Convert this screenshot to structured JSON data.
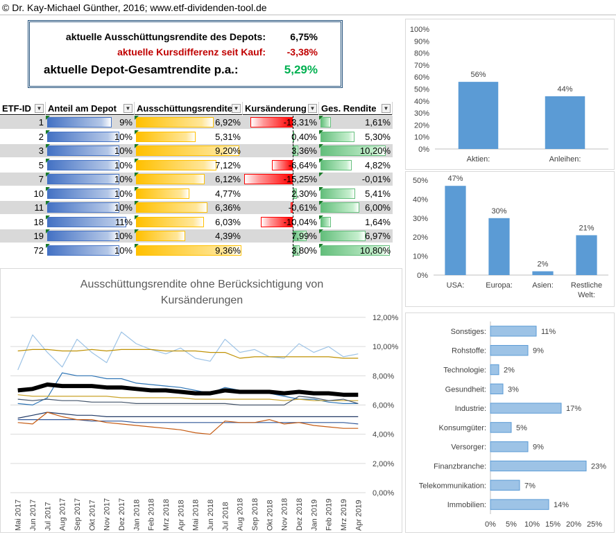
{
  "header": {
    "copyright": "© Dr. Kay-Michael Günther, 2016; www.etf-dividenden-tool.de"
  },
  "summary": {
    "row1_label": "aktuelle Ausschüttungsrendite des Depots:",
    "row1_value": "6,75%",
    "row2_label": "aktuelle Kursdifferenz seit Kauf:",
    "row2_value": "-3,38%",
    "row3_label": "aktuelle Depot-Gesamtrendite p.a.:",
    "row3_value": "5,29%",
    "colors": {
      "negative": "#c00000",
      "positive": "#00b050"
    }
  },
  "table": {
    "columns": [
      "ETF-ID",
      "Anteil am Depot",
      "Ausschüttungsrendite",
      "Kursänderung",
      "Ges. Rendite"
    ],
    "rows": [
      {
        "id": "1",
        "anteil": "9%",
        "anteil_v": 9,
        "aus": "6,92%",
        "aus_v": 6.92,
        "kurs": "-13,31%",
        "kurs_v": -13.31,
        "ges": "1,61%",
        "ges_v": 1.61
      },
      {
        "id": "2",
        "anteil": "10%",
        "anteil_v": 10,
        "aus": "5,31%",
        "aus_v": 5.31,
        "kurs": "0,40%",
        "kurs_v": 0.4,
        "ges": "5,30%",
        "ges_v": 5.3
      },
      {
        "id": "3",
        "anteil": "10%",
        "anteil_v": 10,
        "aus": "9,20%",
        "aus_v": 9.2,
        "kurs": "3,36%",
        "kurs_v": 3.36,
        "ges": "10,20%",
        "ges_v": 10.2
      },
      {
        "id": "5",
        "anteil": "10%",
        "anteil_v": 10,
        "aus": "7,12%",
        "aus_v": 7.12,
        "kurs": "-6,64%",
        "kurs_v": -6.64,
        "ges": "4,82%",
        "ges_v": 4.82
      },
      {
        "id": "7",
        "anteil": "10%",
        "anteil_v": 10,
        "aus": "6,12%",
        "aus_v": 6.12,
        "kurs": "-15,25%",
        "kurs_v": -15.25,
        "ges": "-0,01%",
        "ges_v": -0.01
      },
      {
        "id": "10",
        "anteil": "10%",
        "anteil_v": 10,
        "aus": "4,77%",
        "aus_v": 4.77,
        "kurs": "2,30%",
        "kurs_v": 2.3,
        "ges": "5,41%",
        "ges_v": 5.41
      },
      {
        "id": "11",
        "anteil": "10%",
        "anteil_v": 10,
        "aus": "6,36%",
        "aus_v": 6.36,
        "kurs": "-0,61%",
        "kurs_v": -0.61,
        "ges": "6,00%",
        "ges_v": 6.0
      },
      {
        "id": "18",
        "anteil": "11%",
        "anteil_v": 11,
        "aus": "6,03%",
        "aus_v": 6.03,
        "kurs": "-10,04%",
        "kurs_v": -10.04,
        "ges": "1,64%",
        "ges_v": 1.64
      },
      {
        "id": "19",
        "anteil": "10%",
        "anteil_v": 10,
        "aus": "4,39%",
        "aus_v": 4.39,
        "kurs": "7,99%",
        "kurs_v": 7.99,
        "ges": "6,97%",
        "ges_v": 6.97
      },
      {
        "id": "72",
        "anteil": "10%",
        "anteil_v": 10,
        "aus": "9,36%",
        "aus_v": 9.36,
        "kurs": "3,80%",
        "kurs_v": 3.8,
        "ges": "10,80%",
        "ges_v": 10.8
      }
    ]
  },
  "chart_data": [
    {
      "type": "bar",
      "categories": [
        "Aktien:",
        "Anleihen:"
      ],
      "values": [
        56,
        44
      ],
      "data_labels": [
        "56%",
        "44%"
      ],
      "yticks": [
        "0%",
        "10%",
        "20%",
        "30%",
        "40%",
        "50%",
        "60%",
        "70%",
        "80%",
        "90%",
        "100%"
      ],
      "ylim": [
        0,
        100
      ],
      "color": "#5b9bd5"
    },
    {
      "type": "bar",
      "categories": [
        "USA:",
        "Europa:",
        "Asien:",
        "Restliche Welt:"
      ],
      "values": [
        47,
        30,
        2,
        21
      ],
      "data_labels": [
        "47%",
        "30%",
        "2%",
        "21%"
      ],
      "yticks": [
        "0%",
        "10%",
        "20%",
        "30%",
        "40%",
        "50%"
      ],
      "ylim": [
        0,
        50
      ],
      "color": "#5b9bd5"
    },
    {
      "type": "line",
      "title": "Ausschüttungsrendite ohne Berücksichtigung von Kursänderungen",
      "x": [
        "Mai 2017",
        "Jun 2017",
        "Jul 2017",
        "Aug 2017",
        "Sep 2017",
        "Okt 2017",
        "Nov 2017",
        "Dez 2017",
        "Jan 2018",
        "Feb 2018",
        "Mrz 2018",
        "Apr 2018",
        "Mai 2018",
        "Jun 2018",
        "Jul 2018",
        "Aug 2018",
        "Sep 2018",
        "Okt 2018",
        "Nov 2018",
        "Dez 2018",
        "Jan 2019",
        "Feb 2019",
        "Mrz 2019",
        "Apr 2019"
      ],
      "yticks": [
        "0,00%",
        "2,00%",
        "4,00%",
        "6,00%",
        "8,00%",
        "10,00%",
        "12,00%"
      ],
      "ylim": [
        0,
        12
      ],
      "series": [
        {
          "color": "#9dc3e6",
          "width": 1.2,
          "values": [
            8.4,
            10.8,
            9.6,
            8.6,
            10.5,
            9.6,
            8.9,
            11.0,
            10.2,
            9.8,
            9.5,
            9.9,
            9.2,
            9.0,
            10.5,
            9.6,
            9.8,
            9.3,
            9.2,
            10.2,
            9.6,
            10.0,
            9.3,
            9.5
          ]
        },
        {
          "color": "#bf9000",
          "width": 1.2,
          "values": [
            9.7,
            9.8,
            9.8,
            9.7,
            9.7,
            9.8,
            9.7,
            9.8,
            9.8,
            9.8,
            9.7,
            9.7,
            9.7,
            9.6,
            9.6,
            9.2,
            9.3,
            9.3,
            9.3,
            9.3,
            9.3,
            9.3,
            9.2,
            9.2
          ]
        },
        {
          "color": "#2e75b6",
          "width": 1.2,
          "values": [
            6.1,
            6.0,
            6.5,
            8.2,
            8.0,
            8.0,
            7.8,
            7.8,
            7.5,
            7.4,
            7.3,
            7.2,
            7.0,
            6.8,
            7.2,
            7.0,
            6.9,
            6.8,
            6.6,
            6.4,
            6.4,
            6.2,
            6.1,
            6.1
          ]
        },
        {
          "color": "#000000",
          "width": 6,
          "values": [
            7.0,
            7.1,
            7.4,
            7.3,
            7.3,
            7.3,
            7.2,
            7.2,
            7.1,
            7.0,
            7.0,
            6.9,
            6.8,
            6.8,
            7.0,
            6.9,
            6.9,
            6.9,
            6.8,
            6.9,
            6.8,
            6.8,
            6.7,
            6.7
          ]
        },
        {
          "color": "#c9a227",
          "width": 1.2,
          "values": [
            6.7,
            6.6,
            6.6,
            6.6,
            6.6,
            6.6,
            6.6,
            6.5,
            6.5,
            6.5,
            6.5,
            6.5,
            6.4,
            6.4,
            6.4,
            6.4,
            6.4,
            6.4,
            6.3,
            6.4,
            6.3,
            6.3,
            6.3,
            6.3
          ]
        },
        {
          "color": "#44546a",
          "width": 1.2,
          "values": [
            6.4,
            6.3,
            6.4,
            6.3,
            6.3,
            6.2,
            6.2,
            6.2,
            6.1,
            6.1,
            6.1,
            6.1,
            6.1,
            6.1,
            6.1,
            6.0,
            6.0,
            6.0,
            6.0,
            6.6,
            6.5,
            6.3,
            6.4,
            6.1
          ]
        },
        {
          "color": "#203864",
          "width": 1.2,
          "values": [
            5.1,
            5.3,
            5.5,
            5.4,
            5.3,
            5.3,
            5.2,
            5.2,
            5.2,
            5.2,
            5.2,
            5.2,
            5.2,
            5.2,
            5.2,
            5.2,
            5.2,
            5.2,
            5.2,
            5.2,
            5.2,
            5.2,
            5.2,
            5.2
          ]
        },
        {
          "color": "#2f5597",
          "width": 1.2,
          "values": [
            5.0,
            5.0,
            5.0,
            5.0,
            5.0,
            4.9,
            4.9,
            4.9,
            4.8,
            4.8,
            4.8,
            4.8,
            4.8,
            4.8,
            4.8,
            4.8,
            4.8,
            4.8,
            4.8,
            4.8,
            4.8,
            4.8,
            4.8,
            4.7
          ]
        },
        {
          "color": "#c55a11",
          "width": 1.2,
          "values": [
            4.8,
            4.7,
            5.5,
            5.2,
            5.0,
            5.0,
            4.8,
            4.7,
            4.6,
            4.5,
            4.4,
            4.3,
            4.1,
            4.0,
            4.9,
            4.8,
            4.8,
            5.0,
            4.7,
            4.8,
            4.6,
            4.5,
            4.4,
            4.4
          ]
        }
      ]
    },
    {
      "type": "bar",
      "orientation": "horizontal",
      "categories": [
        "Sonstiges:",
        "Rohstoffe:",
        "Technologie:",
        "Gesundheit:",
        "Industrie:",
        "Konsumgüter:",
        "Versorger:",
        "Finanzbranche:",
        "Telekommunikation:",
        "Immobilien:"
      ],
      "values": [
        11,
        9,
        2,
        3,
        17,
        5,
        9,
        23,
        7,
        14
      ],
      "data_labels": [
        "11%",
        "9%",
        "2%",
        "3%",
        "17%",
        "5%",
        "9%",
        "23%",
        "7%",
        "14%"
      ],
      "xticks": [
        "0%",
        "5%",
        "10%",
        "15%",
        "20%",
        "25%"
      ],
      "xlim": [
        0,
        25
      ],
      "color": "#9dc3e6"
    }
  ]
}
